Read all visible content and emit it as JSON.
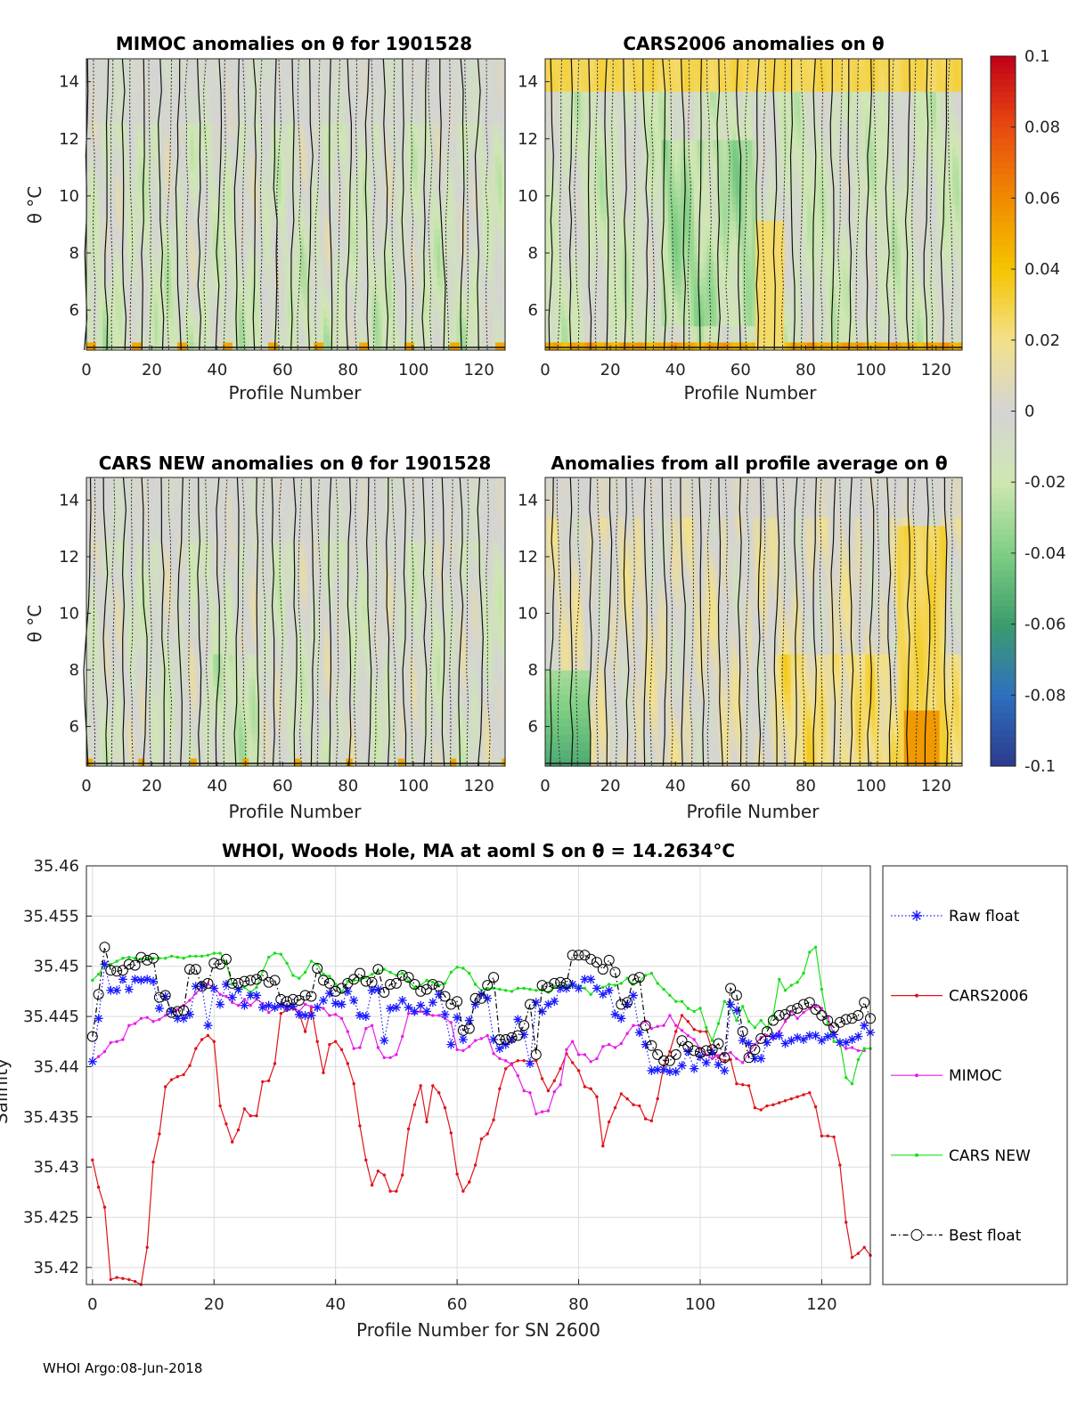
{
  "footer": "WHOI Argo:08-Jun-2018",
  "chart_data": [
    {
      "type": "heatmap",
      "title": "MIMOC anomalies on θ  for 1901528",
      "xlabel": "Profile Number",
      "ylabel": "θ °C",
      "xlim": [
        0,
        128
      ],
      "ylim": [
        4.6,
        14.8
      ],
      "xticks": [
        "0",
        "20",
        "40",
        "60",
        "80",
        "100",
        "120"
      ],
      "yticks": [
        "6",
        "8",
        "10",
        "12",
        "14"
      ],
      "pattern": "mimoc"
    },
    {
      "type": "heatmap",
      "title": "CARS2006 anomalies on θ",
      "xlabel": "Profile Number",
      "ylabel": "",
      "xlim": [
        0,
        128
      ],
      "ylim": [
        4.6,
        14.8
      ],
      "xticks": [
        "0",
        "20",
        "40",
        "60",
        "80",
        "100",
        "120"
      ],
      "yticks": [
        "6",
        "8",
        "10",
        "12",
        "14"
      ],
      "pattern": "cars2006"
    },
    {
      "type": "heatmap",
      "title": "CARS NEW anomalies on θ for 1901528",
      "xlabel": "Profile Number",
      "ylabel": "θ °C",
      "xlim": [
        0,
        128
      ],
      "ylim": [
        4.6,
        14.8
      ],
      "xticks": [
        "0",
        "20",
        "40",
        "60",
        "80",
        "100",
        "120"
      ],
      "yticks": [
        "6",
        "8",
        "10",
        "12",
        "14"
      ],
      "pattern": "carsnew"
    },
    {
      "type": "heatmap",
      "title": "Anomalies from all profile average on θ",
      "xlabel": "Profile Number",
      "ylabel": "",
      "xlim": [
        0,
        128
      ],
      "ylim": [
        4.6,
        14.8
      ],
      "xticks": [
        "0",
        "20",
        "40",
        "60",
        "80",
        "100",
        "120"
      ],
      "yticks": [
        "6",
        "8",
        "10",
        "12",
        "14"
      ],
      "pattern": "allavg"
    },
    {
      "type": "colorbar",
      "range": [
        -0.1,
        0.1
      ],
      "ticks": [
        "0.1",
        "0.08",
        "0.06",
        "0.04",
        "0.02",
        "0",
        "-0.02",
        "-0.04",
        "-0.06",
        "-0.08",
        "-0.1"
      ],
      "stops": [
        "#2b3a8c",
        "#2f6fbf",
        "#3c9d6b",
        "#7fcf84",
        "#cfe7b2",
        "#d4d4d4",
        "#f3e18a",
        "#f5c400",
        "#f08a00",
        "#e84a10",
        "#c00018"
      ]
    },
    {
      "type": "line",
      "title": "WHOI, Woods Hole, MA at aoml S on θ = 14.2634°C",
      "xlabel": "Profile Number for SN 2600",
      "ylabel": "Salinity",
      "xlim": [
        -1,
        128
      ],
      "ylim": [
        35.4183,
        35.46
      ],
      "xticks": [
        "0",
        "20",
        "40",
        "60",
        "80",
        "100",
        "120"
      ],
      "yticks": [
        "35.42",
        "35.425",
        "35.43",
        "35.435",
        "35.44",
        "35.445",
        "35.45",
        "35.455",
        "35.46"
      ],
      "grid": true,
      "legend_position": "outside-right",
      "series": [
        {
          "name": "Raw float",
          "color": "#1a1aff",
          "marker": "asterisk",
          "values": [
            35.4405,
            35.4448,
            35.4502,
            35.4476,
            35.4476,
            35.4487,
            35.4477,
            35.4487,
            35.4486,
            35.4487,
            35.4485,
            35.4458,
            35.447,
            35.4455,
            35.4448,
            35.4448,
            35.4452,
            35.448,
            35.448,
            35.4441,
            35.4478,
            35.4462,
            35.4482,
            35.4469,
            35.4477,
            35.4461,
            35.4471,
            35.4471,
            35.4459,
            35.4461,
            35.4459,
            35.4461,
            35.4459,
            35.446,
            35.4452,
            35.4451,
            35.4451,
            35.4459,
            35.4466,
            35.4473,
            35.4463,
            35.4462,
            35.4475,
            35.4466,
            35.4451,
            35.445,
            35.4476,
            35.4477,
            35.4426,
            35.4458,
            35.4459,
            35.4466,
            35.4459,
            35.4455,
            35.4461,
            35.4455,
            35.4464,
            35.4472,
            35.4452,
            35.4422,
            35.4449,
            35.4427,
            35.4446,
            35.4462,
            35.4472,
            35.4468,
            35.4427,
            35.4418,
            35.4422,
            35.4427,
            35.4447,
            35.4432,
            35.4403,
            35.4464,
            35.4455,
            35.4462,
            35.4465,
            35.4478,
            35.4478,
            35.4482,
            35.4478,
            35.4487,
            35.4487,
            35.4478,
            35.4472,
            35.4476,
            35.4452,
            35.4448,
            35.4462,
            35.4471,
            35.4434,
            35.4422,
            35.4396,
            35.4397,
            35.4397,
            35.4395,
            35.4395,
            35.4401,
            35.4415,
            35.4398,
            35.441,
            35.4404,
            35.4414,
            35.4402,
            35.4396,
            35.4462,
            35.4456,
            35.4426,
            35.4423,
            35.4408,
            35.4408,
            35.4424,
            35.443,
            35.4431,
            35.4423,
            35.4426,
            35.4429,
            35.4427,
            35.4431,
            35.4431,
            35.4426,
            35.443,
            35.4432,
            35.4424,
            35.4424,
            35.4427,
            35.443,
            35.4441,
            35.4434
          ]
        },
        {
          "name": "CARS2006",
          "color": "#e0131a",
          "marker": "dot",
          "values": [
            35.4307,
            35.428,
            35.426,
            35.4188,
            35.419,
            35.4189,
            35.4188,
            35.4186,
            35.4183,
            35.422,
            35.4305,
            35.4333,
            35.438,
            35.4387,
            35.439,
            35.4392,
            35.4401,
            35.4418,
            35.4427,
            35.4431,
            35.4425,
            35.4361,
            35.4343,
            35.4325,
            35.4337,
            35.4358,
            35.4351,
            35.4351,
            35.4385,
            35.4386,
            35.4403,
            35.4453,
            35.4456,
            35.4458,
            35.4453,
            35.4435,
            35.4459,
            35.4425,
            35.4394,
            35.4422,
            35.4425,
            35.4417,
            35.4403,
            35.4383,
            35.4341,
            35.4307,
            35.4282,
            35.4296,
            35.4292,
            35.4276,
            35.4276,
            35.4292,
            35.4338,
            35.4362,
            35.4381,
            35.4345,
            35.4381,
            35.4374,
            35.4359,
            35.4334,
            35.4293,
            35.4276,
            35.4285,
            35.4302,
            35.4328,
            35.4333,
            35.4347,
            35.4378,
            35.4398,
            35.4403,
            35.4406,
            35.4406,
            35.4405,
            35.4406,
            35.4388,
            35.4376,
            35.4386,
            35.4398,
            35.4413,
            35.4404,
            35.4396,
            35.438,
            35.4378,
            35.437,
            35.4321,
            35.4345,
            35.4359,
            35.4373,
            35.4368,
            35.4362,
            35.4361,
            35.4348,
            35.4346,
            35.4368,
            35.4401,
            35.4415,
            35.4435,
            35.4451,
            35.4445,
            35.4437,
            35.4435,
            35.4435,
            35.4416,
            35.4409,
            35.4406,
            35.4407,
            35.4383,
            35.4382,
            35.4381,
            35.4359,
            35.4357,
            35.4361,
            35.4362,
            35.4364,
            35.4366,
            35.4368,
            35.437,
            35.4372,
            35.4374,
            35.436,
            35.4331,
            35.4331,
            35.433,
            35.4302,
            35.4245,
            35.421,
            35.4214,
            35.422,
            35.4212
          ]
        },
        {
          "name": "MIMOC",
          "color": "#e81ee8",
          "marker": "dot",
          "values": [
            35.4405,
            35.441,
            35.4415,
            35.4424,
            35.4425,
            35.4427,
            35.4441,
            35.4443,
            35.4448,
            35.4449,
            35.4445,
            35.4447,
            35.4451,
            35.4455,
            35.4457,
            35.4461,
            35.4466,
            35.4473,
            35.4479,
            35.4482,
            35.4479,
            35.4472,
            35.447,
            35.4464,
            35.4461,
            35.4467,
            35.4461,
            35.4467,
            35.4463,
            35.4454,
            35.4458,
            35.4462,
            35.4461,
            35.446,
            35.4455,
            35.4462,
            35.446,
            35.4459,
            35.4458,
            35.4451,
            35.4452,
            35.4448,
            35.4435,
            35.4418,
            35.4419,
            35.4438,
            35.4441,
            35.4419,
            35.4409,
            35.4409,
            35.4412,
            35.443,
            35.4453,
            35.4453,
            35.4455,
            35.4452,
            35.4451,
            35.4451,
            35.4448,
            35.4444,
            35.4417,
            35.4416,
            35.442,
            35.4426,
            35.4428,
            35.4431,
            35.4413,
            35.4408,
            35.4406,
            35.4402,
            35.4391,
            35.4376,
            35.4374,
            35.4353,
            35.4355,
            35.4356,
            35.4375,
            35.4382,
            35.4417,
            35.4425,
            35.4412,
            35.4412,
            35.4405,
            35.4408,
            35.442,
            35.4422,
            35.4419,
            35.4423,
            35.4433,
            35.4441,
            35.4441,
            35.4445,
            35.4438,
            35.444,
            35.4441,
            35.4451,
            35.4441,
            35.4436,
            35.4431,
            35.4427,
            35.4418,
            35.4412,
            35.4408,
            35.4411,
            35.4413,
            35.4414,
            35.4408,
            35.4404,
            35.4414,
            35.4422,
            35.4429,
            35.4431,
            35.4428,
            35.4435,
            35.4445,
            35.4455,
            35.4448,
            35.4454,
            35.4458,
            35.446,
            35.4458,
            35.4449,
            35.4432,
            35.4423,
            35.4418,
            35.4419,
            35.4416,
            35.4416
          ]
        },
        {
          "name": "CARS NEW",
          "color": "#1adf1a",
          "marker": "dot",
          "values": [
            35.4486,
            35.4492,
            35.4501,
            35.4502,
            35.4505,
            35.4508,
            35.4509,
            35.4508,
            35.4507,
            35.4508,
            35.4508,
            35.4508,
            35.4508,
            35.451,
            35.4509,
            35.4508,
            35.451,
            35.451,
            35.451,
            35.4511,
            35.4513,
            35.4513,
            35.4503,
            35.4482,
            35.4478,
            35.4479,
            35.4474,
            35.4479,
            35.4495,
            35.4509,
            35.4513,
            35.4512,
            35.4503,
            35.4491,
            35.4488,
            35.4494,
            35.4505,
            35.4502,
            35.4492,
            35.449,
            35.4482,
            35.4474,
            35.4485,
            35.4486,
            35.4486,
            35.4489,
            35.4492,
            35.4495,
            35.4497,
            35.4494,
            35.4491,
            35.4493,
            35.4485,
            35.4479,
            35.4481,
            35.4486,
            35.4484,
            35.4481,
            35.4483,
            35.4494,
            35.4499,
            35.4498,
            35.4493,
            35.4482,
            35.4476,
            35.4478,
            35.4478,
            35.4477,
            35.4476,
            35.4475,
            35.4478,
            35.4478,
            35.4477,
            35.4476,
            35.4476,
            35.4474,
            35.448,
            35.4481,
            35.4481,
            35.448,
            35.448,
            35.4478,
            35.4472,
            35.4478,
            35.4479,
            35.4482,
            35.4481,
            35.4483,
            35.4488,
            35.4482,
            35.4485,
            35.4491,
            35.4493,
            35.4483,
            35.4477,
            35.4471,
            35.4465,
            35.4465,
            35.4458,
            35.4455,
            35.4458,
            35.4439,
            35.4426,
            35.4443,
            35.4465,
            35.446,
            35.4446,
            35.446,
            35.4445,
            35.4439,
            35.4446,
            35.4439,
            35.4451,
            35.4487,
            35.4476,
            35.4481,
            35.4484,
            35.4493,
            35.4514,
            35.4519,
            35.4477,
            35.4443,
            35.4425,
            35.4425,
            35.4389,
            35.4383,
            35.4407,
            35.4418,
            35.4418
          ]
        },
        {
          "name": "Best float",
          "color": "#000000",
          "marker": "circle",
          "values": [
            35.443,
            35.4472,
            35.4519,
            35.4496,
            35.4495,
            35.4496,
            35.4502,
            35.4501,
            35.4509,
            35.4506,
            35.4508,
            35.4469,
            35.4471,
            35.4454,
            35.4455,
            35.4456,
            35.4497,
            35.4497,
            35.448,
            35.4483,
            35.4503,
            35.4502,
            35.4507,
            35.4483,
            35.4483,
            35.4485,
            35.4486,
            35.4487,
            35.4491,
            35.4484,
            35.4486,
            35.4467,
            35.4465,
            35.4467,
            35.4466,
            35.4471,
            35.447,
            35.4498,
            35.4486,
            35.4483,
            35.4475,
            35.4478,
            35.4483,
            35.4487,
            35.4493,
            35.4485,
            35.4484,
            35.4497,
            35.4474,
            35.4482,
            35.4483,
            35.4491,
            35.4489,
            35.4482,
            35.4475,
            35.4477,
            35.4482,
            35.448,
            35.447,
            35.4462,
            35.4465,
            35.4436,
            35.4438,
            35.4468,
            35.4468,
            35.4481,
            35.4489,
            35.4427,
            35.4427,
            35.4429,
            35.4431,
            35.4441,
            35.4462,
            35.4412,
            35.4481,
            35.4479,
            35.4483,
            35.4484,
            35.4483,
            35.4511,
            35.4511,
            35.4511,
            35.4507,
            35.4504,
            35.4497,
            35.4506,
            35.4494,
            35.4462,
            35.4464,
            35.4487,
            35.4489,
            35.4441,
            35.4421,
            35.4412,
            35.4406,
            35.4406,
            35.4412,
            35.4426,
            35.442,
            35.4416,
            35.4414,
            35.4416,
            35.4417,
            35.4423,
            35.4409,
            35.4478,
            35.4471,
            35.4435,
            35.4409,
            35.4417,
            35.4428,
            35.4435,
            35.4446,
            35.4451,
            35.4452,
            35.4456,
            35.4458,
            35.4462,
            35.4464,
            35.4457,
            35.4451,
            35.4446,
            35.4439,
            35.4444,
            35.4447,
            35.4448,
            35.4451,
            35.4464,
            35.4448
          ]
        }
      ]
    }
  ]
}
